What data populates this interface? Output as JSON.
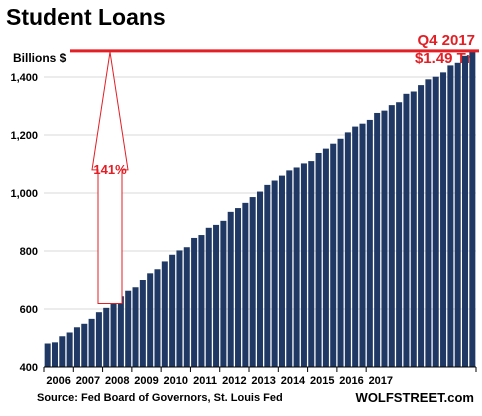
{
  "header": {
    "title": "Student Loans",
    "unit_label": "Billions $",
    "callout_period": "Q4 2017",
    "callout_value": "$1.49 Tn",
    "source": "Source: Fed Board of Governors, St. Louis Fed",
    "brand": "WOLFSTREET.com"
  },
  "colors": {
    "bar": "#1f3864",
    "accent": "#e31e24",
    "grid": "#d9d9d9"
  },
  "chart_data": {
    "type": "bar",
    "title": "Student Loans",
    "ylabel": "Billions $",
    "ylim": [
      400,
      1500
    ],
    "yticks": [
      400,
      600,
      800,
      1000,
      1200,
      1400
    ],
    "ytick_labels": [
      "400",
      "600",
      "800",
      "1,000",
      "1,200",
      "1,400"
    ],
    "xtick_labels": [
      "2006",
      "2007",
      "2008",
      "2009",
      "2010",
      "2011",
      "2012",
      "2013",
      "2014",
      "2015",
      "2016",
      "2017"
    ],
    "grid": "horizontal",
    "series": [
      {
        "values": [
          481,
          485,
          506,
          519,
          537,
          549,
          566,
          589,
          604,
          619,
          644,
          663,
          675,
          700,
          723,
          737,
          764,
          787,
          802,
          813,
          845,
          855,
          880,
          890,
          904,
          935,
          948,
          966,
          986,
          1005,
          1028,
          1043,
          1060,
          1078,
          1088,
          1102,
          1110,
          1138,
          1153,
          1170,
          1187,
          1209,
          1229,
          1239,
          1252,
          1276,
          1284,
          1303,
          1313,
          1342,
          1350,
          1372,
          1392,
          1401,
          1416,
          1440,
          1449,
          1473,
          1490
        ]
      }
    ],
    "reference_line": {
      "value": 1490,
      "label": "Q4 2017 $1.49 Tn"
    },
    "annotation": {
      "text": "141%",
      "from": 619,
      "to": 1490
    }
  }
}
